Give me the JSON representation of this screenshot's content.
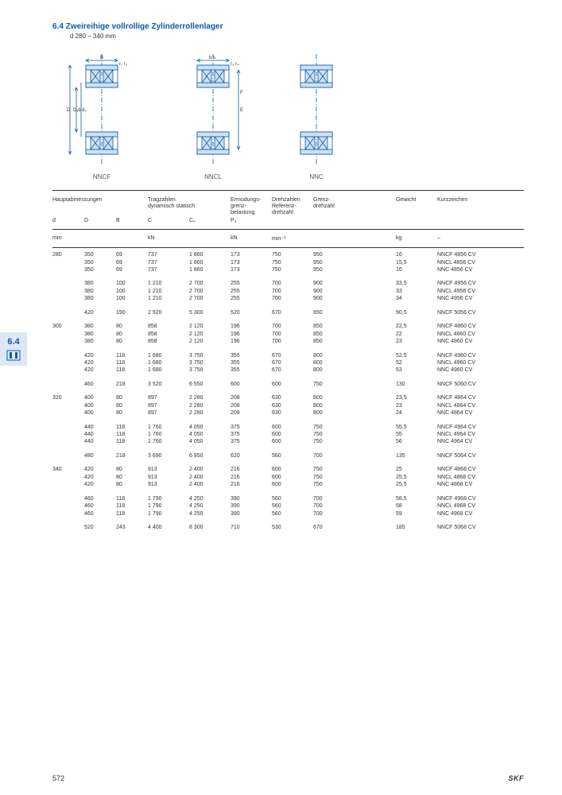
{
  "header": {
    "section_number": "6.4",
    "title": "Zweireihige vollrollige Zylinderrollenlager",
    "range": "d 280 – 340 mm"
  },
  "diagram_labels": [
    "NNCF",
    "NNCL",
    "NNC"
  ],
  "table": {
    "columns_top": {
      "c0": "Hauptabmessungen",
      "c3": "Tragzahlen\ndynamisch  statisch",
      "c5": "Ermüdungs-\ngrenz-\nbelastung",
      "c6": "Drehzahlen\nReferenz-\ndrehzahl",
      "c7": "Grenz-\ndrehzahl",
      "c8": "Gewicht",
      "c9": "Kurzzeichen"
    },
    "columns_sub": {
      "c0": "d",
      "c1": "D",
      "c2": "B",
      "c3": "C",
      "c4": "C₀",
      "c5": "Pᵤ"
    },
    "columns_unit": {
      "c0": "mm",
      "c3": "kN",
      "c5": "kN",
      "c6": "min⁻¹",
      "c8": "kg",
      "c9": "–"
    },
    "groups": [
      {
        "d": "280",
        "rows": [
          [
            "",
            "350",
            "69",
            "737",
            "1 860",
            "173",
            "750",
            "950",
            "16",
            "NNCF 4856 CV"
          ],
          [
            "",
            "350",
            "69",
            "737",
            "1 860",
            "173",
            "750",
            "950",
            "15,5",
            "NNCL 4856 CV"
          ],
          [
            "",
            "350",
            "69",
            "737",
            "1 860",
            "173",
            "750",
            "950",
            "16",
            "NNC 4856 CV"
          ]
        ]
      },
      {
        "d": "",
        "rows": [
          [
            "",
            "380",
            "100",
            "1 210",
            "2 700",
            "255",
            "700",
            "900",
            "33,5",
            "NNCF 4956 CV"
          ],
          [
            "",
            "380",
            "100",
            "1 210",
            "2 700",
            "255",
            "700",
            "900",
            "33",
            "NNCL 4956 CV"
          ],
          [
            "",
            "380",
            "100",
            "1 210",
            "2 700",
            "255",
            "700",
            "900",
            "34",
            "NNC 4956 CV"
          ]
        ]
      },
      {
        "d": "",
        "rows": [
          [
            "",
            "420",
            "190",
            "2 920",
            "5 300",
            "520",
            "670",
            "850",
            "90,5",
            "NNCF 5056 CV"
          ]
        ]
      },
      {
        "d": "300",
        "rows": [
          [
            "",
            "380",
            "80",
            "858",
            "2 120",
            "196",
            "700",
            "850",
            "22,5",
            "NNCF 4860 CV"
          ],
          [
            "",
            "380",
            "80",
            "858",
            "2 120",
            "196",
            "700",
            "850",
            "22",
            "NNCL 4860 CV"
          ],
          [
            "",
            "380",
            "80",
            "858",
            "2 120",
            "196",
            "700",
            "850",
            "23",
            "NNC 4860 CV"
          ]
        ]
      },
      {
        "d": "",
        "rows": [
          [
            "",
            "420",
            "118",
            "1 680",
            "3 750",
            "355",
            "670",
            "800",
            "52,5",
            "NNCF 4960 CV"
          ],
          [
            "",
            "420",
            "118",
            "1 680",
            "3 750",
            "355",
            "670",
            "800",
            "52",
            "NNCL 4960 CV"
          ],
          [
            "",
            "420",
            "118",
            "1 680",
            "3 750",
            "355",
            "670",
            "800",
            "53",
            "NNC 4960 CV"
          ]
        ]
      },
      {
        "d": "",
        "rows": [
          [
            "",
            "460",
            "218",
            "3 520",
            "6 550",
            "600",
            "600",
            "750",
            "130",
            "NNCF 5060 CV"
          ]
        ]
      },
      {
        "d": "320",
        "rows": [
          [
            "",
            "400",
            "80",
            "897",
            "2 280",
            "208",
            "630",
            "800",
            "23,5",
            "NNCF 4864 CV"
          ],
          [
            "",
            "400",
            "80",
            "897",
            "2 280",
            "208",
            "630",
            "800",
            "23",
            "NNCL 4864 CV"
          ],
          [
            "",
            "400",
            "80",
            "897",
            "2 280",
            "208",
            "630",
            "800",
            "24",
            "NNC 4864 CV"
          ]
        ]
      },
      {
        "d": "",
        "rows": [
          [
            "",
            "440",
            "118",
            "1 760",
            "4 050",
            "375",
            "600",
            "750",
            "55,5",
            "NNCF 4964 CV"
          ],
          [
            "",
            "440",
            "118",
            "1 760",
            "4 050",
            "375",
            "600",
            "750",
            "55",
            "NNCL 4964 CV"
          ],
          [
            "",
            "440",
            "118",
            "1 760",
            "4 050",
            "375",
            "600",
            "750",
            "56",
            "NNC 4964 CV"
          ]
        ]
      },
      {
        "d": "",
        "rows": [
          [
            "",
            "480",
            "218",
            "3 690",
            "6 950",
            "620",
            "560",
            "700",
            "135",
            "NNCF 5064 CV"
          ]
        ]
      },
      {
        "d": "340",
        "rows": [
          [
            "",
            "420",
            "80",
            "913",
            "2 400",
            "216",
            "600",
            "750",
            "25",
            "NNCF 4868 CV"
          ],
          [
            "",
            "420",
            "80",
            "913",
            "2 400",
            "216",
            "600",
            "750",
            "25,5",
            "NNCL 4868 CV"
          ],
          [
            "",
            "420",
            "80",
            "913",
            "2 400",
            "216",
            "600",
            "750",
            "25,5",
            "NNC 4868 CV"
          ]
        ]
      },
      {
        "d": "",
        "rows": [
          [
            "",
            "460",
            "118",
            "1 790",
            "4 250",
            "390",
            "560",
            "700",
            "58,5",
            "NNCF 4968 CV"
          ],
          [
            "",
            "460",
            "118",
            "1 790",
            "4 250",
            "390",
            "560",
            "700",
            "58",
            "NNCL 4968 CV"
          ],
          [
            "",
            "460",
            "118",
            "1 790",
            "4 250",
            "390",
            "560",
            "700",
            "59",
            "NNC 4968 CV"
          ]
        ]
      },
      {
        "d": "",
        "rows": [
          [
            "",
            "520",
            "243",
            "4 400",
            "8 300",
            "710",
            "530",
            "670",
            "185",
            "NNCF 5068 CV"
          ]
        ]
      }
    ]
  },
  "side_tab": {
    "label": "6.4"
  },
  "footer": {
    "page": "572",
    "brand": "SKF"
  },
  "colors": {
    "accent": "#0a5aa8",
    "line": "#333333",
    "tab_bg": "#dde8f4"
  }
}
